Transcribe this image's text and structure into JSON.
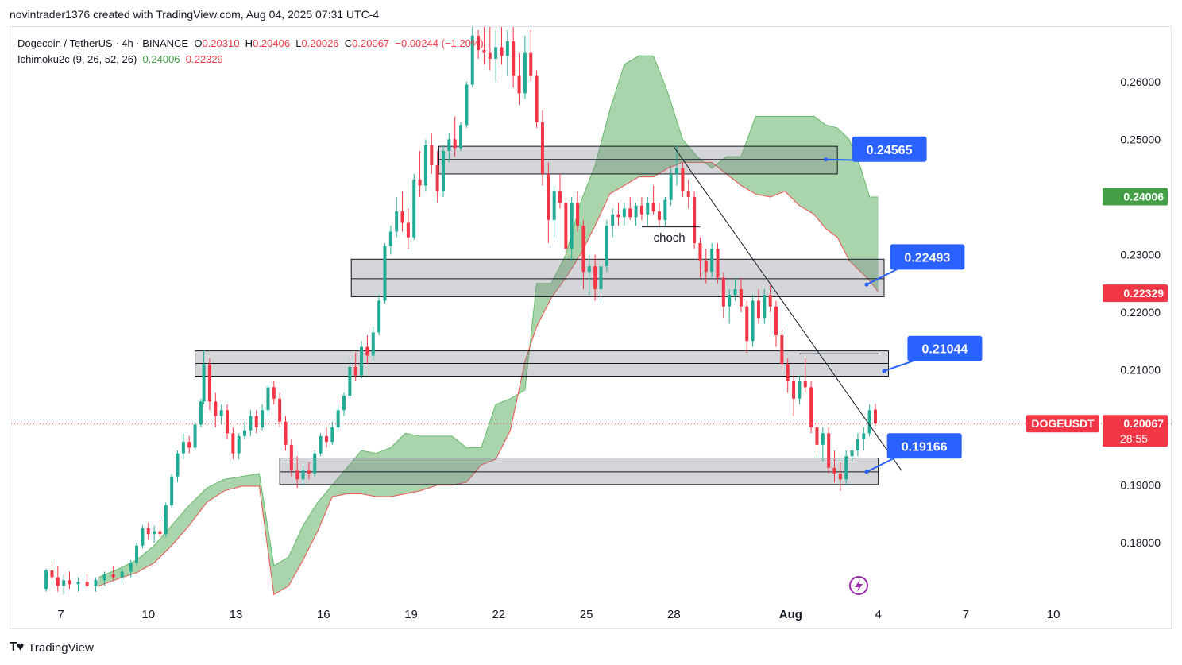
{
  "header": {
    "attribution": "novintrader1376 created with TradingView.com, Aug 04, 2025 07:31 UTC-4"
  },
  "legend": {
    "symbol": "Dogecoin / TetherUS · 4h · BINANCE",
    "o_label": "O",
    "o": "0.20310",
    "h_label": "H",
    "h": "0.20406",
    "l_label": "L",
    "l": "0.20026",
    "c_label": "C",
    "c": "0.20067",
    "change": "−0.00244 (−1.20%)",
    "indicator": "Ichimoku2c (9, 26, 52, 26)",
    "ind_a": "0.24006",
    "ind_b": "0.22329"
  },
  "footer": {
    "brand": "TradingView"
  },
  "chart_data": {
    "type": "candlestick",
    "y_ticks": [
      "0.26000",
      "0.25000",
      "0.23000",
      "0.22000",
      "0.21000",
      "0.19000",
      "0.18000"
    ],
    "y_tick_values": [
      0.26,
      0.25,
      0.23,
      0.22,
      0.21,
      0.19,
      0.18
    ],
    "ylim": [
      0.1705,
      0.2695
    ],
    "x_ticks": [
      "7",
      "10",
      "13",
      "16",
      "19",
      "22",
      "25",
      "28",
      "Aug",
      "4",
      "7",
      "10"
    ],
    "x_tick_days": [
      7,
      10,
      13,
      16,
      19,
      22,
      25,
      28,
      32,
      35,
      38,
      41
    ],
    "xlim": [
      5.3,
      42.6
    ],
    "price_badges": [
      {
        "label": "0.24006",
        "value": 0.24006,
        "color": "#43a047",
        "kind": "ichimoku-a"
      },
      {
        "label": "0.22329",
        "value": 0.22329,
        "color": "#f23645",
        "kind": "ichimoku-b"
      },
      {
        "label": "0.20067",
        "value": 0.20067,
        "color": "#f23645",
        "kind": "last"
      }
    ],
    "symbol_tag": "DOGEUSDT",
    "countdown": "28:55",
    "last_price": 0.20067,
    "callouts": [
      {
        "label": "0.24565",
        "day": 34.1,
        "price": 0.2483,
        "anchor_day": 33.2,
        "anchor_price": 0.2465
      },
      {
        "label": "0.22493",
        "day": 35.4,
        "price": 0.2296,
        "anchor_day": 34.6,
        "anchor_price": 0.2248
      },
      {
        "label": "0.21044",
        "day": 36.0,
        "price": 0.2137,
        "anchor_day": 35.2,
        "anchor_price": 0.2098
      },
      {
        "label": "0.19166",
        "day": 35.3,
        "price": 0.1968,
        "anchor_day": 34.6,
        "anchor_price": 0.1923
      }
    ],
    "zones": [
      {
        "day0": 19.95,
        "day1": 33.6,
        "top": 0.2488,
        "mid": 0.2465,
        "bottom": 0.244
      },
      {
        "day0": 16.95,
        "day1": 35.2,
        "top": 0.2292,
        "mid": 0.2258,
        "bottom": 0.2227
      },
      {
        "day0": 11.6,
        "day1": 35.35,
        "top": 0.2133,
        "mid": 0.2111,
        "bottom": 0.2089
      },
      {
        "day0": 14.5,
        "day1": 35.0,
        "top": 0.1947,
        "mid": 0.1923,
        "bottom": 0.1901
      }
    ],
    "annotations": [
      {
        "text": "choch",
        "day": 27.3,
        "price": 0.2323
      }
    ],
    "level_lines": [
      {
        "day0": 26.9,
        "day1": 28.9,
        "price": 0.2348
      },
      {
        "day0": 32.3,
        "day1": 35.0,
        "price": 0.2128
      }
    ],
    "trendline": {
      "day0": 28.0,
      "price0": 0.2487,
      "day1": 35.8,
      "price1": 0.1925
    },
    "cloud": [
      [
        8.3,
        0.174,
        0.1725
      ],
      [
        9.0,
        0.1755,
        0.1738
      ],
      [
        9.6,
        0.177,
        0.1748
      ],
      [
        10.2,
        0.1795,
        0.1765
      ],
      [
        10.8,
        0.183,
        0.1795
      ],
      [
        11.4,
        0.1865,
        0.183
      ],
      [
        12.0,
        0.1895,
        0.187
      ],
      [
        12.6,
        0.191,
        0.189
      ],
      [
        13.2,
        0.1915,
        0.1898
      ],
      [
        13.8,
        0.192,
        0.1898
      ],
      [
        14.3,
        0.176,
        0.171
      ],
      [
        14.8,
        0.1775,
        0.1725
      ],
      [
        15.3,
        0.183,
        0.177
      ],
      [
        15.8,
        0.187,
        0.182
      ],
      [
        16.3,
        0.19,
        0.188
      ],
      [
        16.8,
        0.193,
        0.1885
      ],
      [
        17.3,
        0.196,
        0.1885
      ],
      [
        17.8,
        0.1955,
        0.188
      ],
      [
        18.3,
        0.1965,
        0.188
      ],
      [
        18.8,
        0.199,
        0.1885
      ],
      [
        19.3,
        0.1985,
        0.189
      ],
      [
        19.9,
        0.1985,
        0.19
      ],
      [
        20.4,
        0.1985,
        0.19
      ],
      [
        20.9,
        0.1965,
        0.1905
      ],
      [
        21.4,
        0.1965,
        0.1935
      ],
      [
        21.9,
        0.204,
        0.1945
      ],
      [
        22.4,
        0.205,
        0.1995
      ],
      [
        22.9,
        0.2065,
        0.2115
      ],
      [
        23.3,
        0.225,
        0.2175
      ],
      [
        23.8,
        0.225,
        0.2225
      ],
      [
        24.3,
        0.23,
        0.226
      ],
      [
        24.8,
        0.239,
        0.23
      ],
      [
        25.3,
        0.2455,
        0.235
      ],
      [
        25.8,
        0.255,
        0.2405
      ],
      [
        26.3,
        0.263,
        0.242
      ],
      [
        26.8,
        0.2645,
        0.2435
      ],
      [
        27.3,
        0.2645,
        0.2435
      ],
      [
        27.8,
        0.258,
        0.245
      ],
      [
        28.3,
        0.25,
        0.246
      ],
      [
        28.8,
        0.247,
        0.246
      ],
      [
        29.3,
        0.245,
        0.246
      ],
      [
        29.8,
        0.247,
        0.244
      ],
      [
        30.3,
        0.247,
        0.242
      ],
      [
        30.8,
        0.254,
        0.2405
      ],
      [
        31.3,
        0.254,
        0.24
      ],
      [
        31.8,
        0.254,
        0.241
      ],
      [
        32.3,
        0.254,
        0.2385
      ],
      [
        32.8,
        0.254,
        0.237
      ],
      [
        33.2,
        0.2525,
        0.2345
      ],
      [
        33.6,
        0.252,
        0.233
      ],
      [
        34.0,
        0.25,
        0.229
      ],
      [
        34.4,
        0.245,
        0.227
      ],
      [
        34.7,
        0.24,
        0.2255
      ],
      [
        35.0,
        0.24,
        0.2235
      ]
    ],
    "candles": [
      [
        6.5,
        0.172,
        0.1755,
        0.1715,
        0.1752
      ],
      [
        6.7,
        0.1752,
        0.177,
        0.1735,
        0.174
      ],
      [
        6.9,
        0.174,
        0.176,
        0.1715,
        0.1725
      ],
      [
        7.1,
        0.1725,
        0.1745,
        0.171,
        0.1735
      ],
      [
        7.3,
        0.1735,
        0.175,
        0.172,
        0.1728
      ],
      [
        7.6,
        0.1728,
        0.174,
        0.1715,
        0.1732
      ],
      [
        7.9,
        0.1732,
        0.1745,
        0.172,
        0.1725
      ],
      [
        8.2,
        0.1725,
        0.174,
        0.1715,
        0.1735
      ],
      [
        8.5,
        0.1735,
        0.175,
        0.1725,
        0.1745
      ],
      [
        8.8,
        0.1745,
        0.176,
        0.1735,
        0.174
      ],
      [
        9.1,
        0.174,
        0.1755,
        0.173,
        0.175
      ],
      [
        9.4,
        0.175,
        0.177,
        0.174,
        0.1765
      ],
      [
        9.6,
        0.1765,
        0.18,
        0.176,
        0.1795
      ],
      [
        9.8,
        0.1795,
        0.183,
        0.179,
        0.1825
      ],
      [
        10.0,
        0.1825,
        0.1835,
        0.1805,
        0.1815
      ],
      [
        10.2,
        0.1815,
        0.183,
        0.18,
        0.182
      ],
      [
        10.4,
        0.182,
        0.184,
        0.181,
        0.1815
      ],
      [
        10.6,
        0.1815,
        0.187,
        0.181,
        0.1865
      ],
      [
        10.8,
        0.1865,
        0.192,
        0.186,
        0.1915
      ],
      [
        11.0,
        0.1915,
        0.196,
        0.1905,
        0.1955
      ],
      [
        11.2,
        0.1955,
        0.199,
        0.1945,
        0.1975
      ],
      [
        11.4,
        0.1975,
        0.1985,
        0.1955,
        0.1965
      ],
      [
        11.6,
        0.1965,
        0.201,
        0.196,
        0.2005
      ],
      [
        11.8,
        0.2005,
        0.205,
        0.2,
        0.2045
      ],
      [
        11.9,
        0.2045,
        0.2135,
        0.204,
        0.211
      ],
      [
        12.1,
        0.211,
        0.212,
        0.203,
        0.2045
      ],
      [
        12.3,
        0.2045,
        0.206,
        0.2,
        0.202
      ],
      [
        12.5,
        0.202,
        0.204,
        0.2005,
        0.203
      ],
      [
        12.7,
        0.203,
        0.204,
        0.198,
        0.199
      ],
      [
        12.9,
        0.199,
        0.2,
        0.1945,
        0.1955
      ],
      [
        13.1,
        0.1955,
        0.199,
        0.1945,
        0.1985
      ],
      [
        13.3,
        0.1985,
        0.201,
        0.198,
        0.1995
      ],
      [
        13.5,
        0.1995,
        0.203,
        0.1985,
        0.202
      ],
      [
        13.7,
        0.202,
        0.203,
        0.199,
        0.2
      ],
      [
        13.9,
        0.2,
        0.204,
        0.1995,
        0.203
      ],
      [
        14.1,
        0.203,
        0.2075,
        0.202,
        0.207
      ],
      [
        14.3,
        0.207,
        0.208,
        0.204,
        0.205
      ],
      [
        14.5,
        0.205,
        0.206,
        0.2,
        0.201
      ],
      [
        14.7,
        0.201,
        0.202,
        0.196,
        0.197
      ],
      [
        14.9,
        0.197,
        0.198,
        0.1915,
        0.1925
      ],
      [
        15.1,
        0.1925,
        0.195,
        0.1895,
        0.191
      ],
      [
        15.3,
        0.191,
        0.1935,
        0.19,
        0.1925
      ],
      [
        15.5,
        0.1925,
        0.194,
        0.191,
        0.192
      ],
      [
        15.7,
        0.192,
        0.196,
        0.1915,
        0.1955
      ],
      [
        15.9,
        0.1955,
        0.199,
        0.195,
        0.1985
      ],
      [
        16.1,
        0.1985,
        0.2,
        0.1965,
        0.1975
      ],
      [
        16.3,
        0.1975,
        0.201,
        0.197,
        0.2
      ],
      [
        16.5,
        0.2,
        0.204,
        0.1995,
        0.203
      ],
      [
        16.7,
        0.203,
        0.206,
        0.202,
        0.2055
      ],
      [
        16.9,
        0.2055,
        0.212,
        0.205,
        0.2105
      ],
      [
        17.1,
        0.2105,
        0.213,
        0.208,
        0.209
      ],
      [
        17.3,
        0.209,
        0.215,
        0.2085,
        0.214
      ],
      [
        17.5,
        0.214,
        0.216,
        0.211,
        0.2125
      ],
      [
        17.7,
        0.2125,
        0.2175,
        0.2115,
        0.2165
      ],
      [
        17.9,
        0.2165,
        0.223,
        0.216,
        0.222
      ],
      [
        18.1,
        0.222,
        0.232,
        0.2215,
        0.2315
      ],
      [
        18.3,
        0.2315,
        0.235,
        0.23,
        0.234
      ],
      [
        18.5,
        0.234,
        0.24,
        0.233,
        0.2375
      ],
      [
        18.7,
        0.2375,
        0.241,
        0.234,
        0.2355
      ],
      [
        18.9,
        0.2355,
        0.238,
        0.231,
        0.233
      ],
      [
        19.1,
        0.233,
        0.244,
        0.2325,
        0.243
      ],
      [
        19.3,
        0.243,
        0.248,
        0.24,
        0.242
      ],
      [
        19.5,
        0.242,
        0.25,
        0.241,
        0.249
      ],
      [
        19.7,
        0.249,
        0.251,
        0.244,
        0.2455
      ],
      [
        19.9,
        0.2455,
        0.248,
        0.239,
        0.241
      ],
      [
        20.1,
        0.241,
        0.249,
        0.24,
        0.248
      ],
      [
        20.3,
        0.248,
        0.251,
        0.246,
        0.25
      ],
      [
        20.5,
        0.25,
        0.254,
        0.247,
        0.2485
      ],
      [
        20.7,
        0.2485,
        0.253,
        0.248,
        0.2525
      ],
      [
        20.9,
        0.2525,
        0.26,
        0.252,
        0.2595
      ],
      [
        21.1,
        0.2595,
        0.27,
        0.259,
        0.268
      ],
      [
        21.3,
        0.268,
        0.269,
        0.264,
        0.2655
      ],
      [
        21.5,
        0.2655,
        0.27,
        0.263,
        0.265
      ],
      [
        21.7,
        0.265,
        0.27,
        0.262,
        0.264
      ],
      [
        21.9,
        0.264,
        0.269,
        0.26,
        0.266
      ],
      [
        22.1,
        0.266,
        0.27,
        0.263,
        0.2645
      ],
      [
        22.3,
        0.2645,
        0.269,
        0.261,
        0.267
      ],
      [
        22.5,
        0.267,
        0.27,
        0.259,
        0.261
      ],
      [
        22.7,
        0.261,
        0.265,
        0.256,
        0.258
      ],
      [
        22.9,
        0.258,
        0.268,
        0.257,
        0.265
      ],
      [
        23.1,
        0.265,
        0.269,
        0.26,
        0.261
      ],
      [
        23.3,
        0.261,
        0.262,
        0.252,
        0.253
      ],
      [
        23.5,
        0.253,
        0.255,
        0.242,
        0.244
      ],
      [
        23.7,
        0.244,
        0.246,
        0.232,
        0.236
      ],
      [
        23.9,
        0.236,
        0.242,
        0.233,
        0.241
      ],
      [
        24.1,
        0.241,
        0.244,
        0.238,
        0.239
      ],
      [
        24.3,
        0.239,
        0.24,
        0.23,
        0.231
      ],
      [
        24.5,
        0.231,
        0.24,
        0.229,
        0.239
      ],
      [
        24.7,
        0.239,
        0.241,
        0.234,
        0.235
      ],
      [
        24.9,
        0.235,
        0.236,
        0.224,
        0.227
      ],
      [
        25.1,
        0.227,
        0.23,
        0.223,
        0.228
      ],
      [
        25.3,
        0.228,
        0.23,
        0.222,
        0.224
      ],
      [
        25.5,
        0.224,
        0.229,
        0.222,
        0.228
      ],
      [
        25.7,
        0.228,
        0.236,
        0.227,
        0.235
      ],
      [
        25.9,
        0.235,
        0.238,
        0.233,
        0.237
      ],
      [
        26.1,
        0.237,
        0.239,
        0.235,
        0.2365
      ],
      [
        26.3,
        0.2365,
        0.239,
        0.235,
        0.238
      ],
      [
        26.5,
        0.238,
        0.24,
        0.236,
        0.2365
      ],
      [
        26.7,
        0.2365,
        0.239,
        0.235,
        0.2385
      ],
      [
        26.9,
        0.2385,
        0.24,
        0.236,
        0.237
      ],
      [
        27.1,
        0.237,
        0.24,
        0.235,
        0.239
      ],
      [
        27.3,
        0.239,
        0.242,
        0.237,
        0.2375
      ],
      [
        27.5,
        0.2375,
        0.239,
        0.235,
        0.236
      ],
      [
        27.7,
        0.236,
        0.24,
        0.235,
        0.2395
      ],
      [
        27.9,
        0.2395,
        0.245,
        0.2385,
        0.244
      ],
      [
        28.1,
        0.244,
        0.249,
        0.242,
        0.245
      ],
      [
        28.3,
        0.245,
        0.246,
        0.24,
        0.241
      ],
      [
        28.5,
        0.241,
        0.243,
        0.238,
        0.24
      ],
      [
        28.7,
        0.24,
        0.241,
        0.231,
        0.232
      ],
      [
        28.9,
        0.232,
        0.233,
        0.226,
        0.229
      ],
      [
        29.1,
        0.229,
        0.231,
        0.225,
        0.227
      ],
      [
        29.3,
        0.227,
        0.232,
        0.226,
        0.231
      ],
      [
        29.5,
        0.231,
        0.232,
        0.225,
        0.226
      ],
      [
        29.7,
        0.226,
        0.227,
        0.219,
        0.221
      ],
      [
        29.9,
        0.221,
        0.224,
        0.218,
        0.223
      ],
      [
        30.1,
        0.223,
        0.226,
        0.222,
        0.224
      ],
      [
        30.3,
        0.224,
        0.226,
        0.22,
        0.221
      ],
      [
        30.5,
        0.221,
        0.222,
        0.213,
        0.215
      ],
      [
        30.7,
        0.215,
        0.223,
        0.214,
        0.222
      ],
      [
        30.9,
        0.222,
        0.224,
        0.218,
        0.219
      ],
      [
        31.1,
        0.219,
        0.224,
        0.218,
        0.223
      ],
      [
        31.3,
        0.223,
        0.225,
        0.22,
        0.221
      ],
      [
        31.5,
        0.221,
        0.222,
        0.214,
        0.216
      ],
      [
        31.7,
        0.216,
        0.217,
        0.21,
        0.211
      ],
      [
        31.9,
        0.211,
        0.212,
        0.206,
        0.208
      ],
      [
        32.1,
        0.208,
        0.209,
        0.202,
        0.205
      ],
      [
        32.3,
        0.205,
        0.209,
        0.204,
        0.208
      ],
      [
        32.5,
        0.208,
        0.212,
        0.206,
        0.207
      ],
      [
        32.7,
        0.207,
        0.208,
        0.199,
        0.2
      ],
      [
        32.9,
        0.2,
        0.201,
        0.195,
        0.197
      ],
      [
        33.1,
        0.197,
        0.2,
        0.194,
        0.199
      ],
      [
        33.3,
        0.199,
        0.2,
        0.192,
        0.193
      ],
      [
        33.5,
        0.193,
        0.196,
        0.1905,
        0.192
      ],
      [
        33.7,
        0.192,
        0.194,
        0.189,
        0.191
      ],
      [
        33.9,
        0.191,
        0.196,
        0.19,
        0.195
      ],
      [
        34.1,
        0.195,
        0.197,
        0.194,
        0.196
      ],
      [
        34.3,
        0.196,
        0.199,
        0.195,
        0.198
      ],
      [
        34.5,
        0.198,
        0.2,
        0.196,
        0.199
      ],
      [
        34.7,
        0.199,
        0.204,
        0.1985,
        0.203
      ],
      [
        34.9,
        0.2031,
        0.2041,
        0.2003,
        0.2007
      ]
    ]
  }
}
